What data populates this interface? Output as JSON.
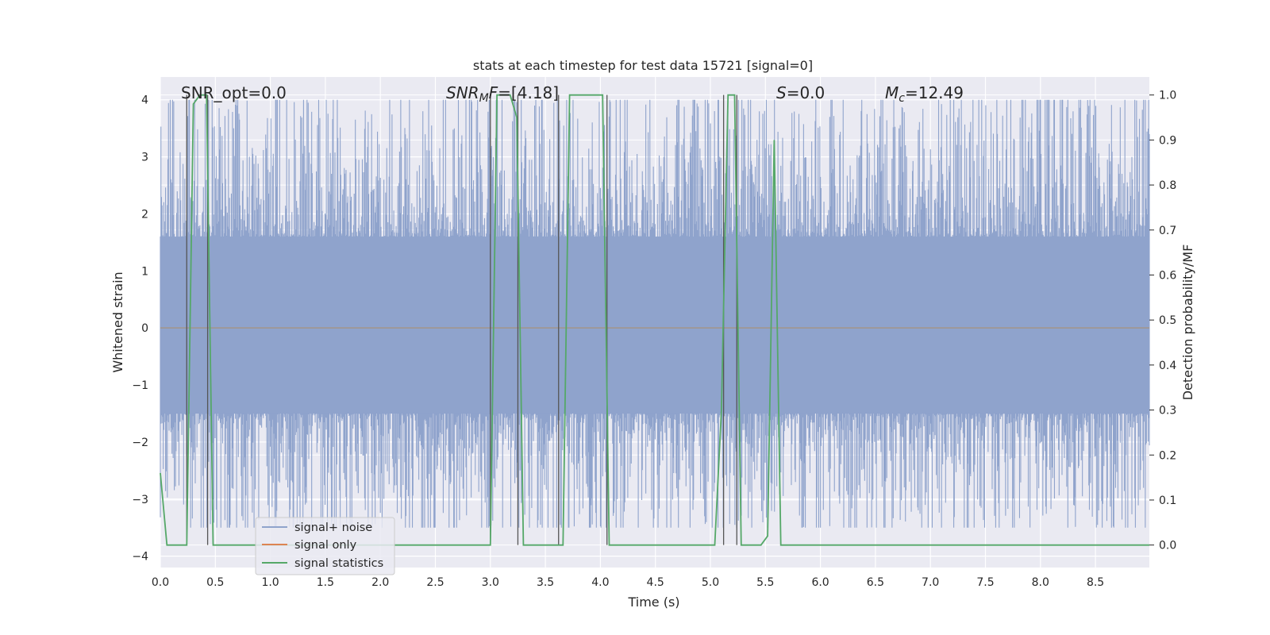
{
  "chart_data": {
    "type": "line",
    "title": "stats at each timestep for test data 15721 [signal=0]",
    "xlabel": "Time (s)",
    "ylabel": "Whitened strain",
    "y2label": "Detection probability/MF",
    "xlim": [
      0,
      8.99
    ],
    "ylim": [
      -4.2,
      4.4
    ],
    "y2lim": [
      -0.05,
      1.04
    ],
    "x_ticks": [
      "0.0",
      "0.5",
      "1.0",
      "1.5",
      "2.0",
      "2.5",
      "3.0",
      "3.5",
      "4.0",
      "4.5",
      "5.0",
      "5.5",
      "6.0",
      "6.5",
      "7.0",
      "7.5",
      "8.0",
      "8.5"
    ],
    "y_ticks": [
      "4",
      "3",
      "2",
      "1",
      "0",
      "−1",
      "−2",
      "−3",
      "−4"
    ],
    "y2_ticks": [
      "1.0",
      "0.9",
      "0.8",
      "0.7",
      "0.6",
      "0.5",
      "0.4",
      "0.3",
      "0.2",
      "0.1",
      "0.0"
    ],
    "grid": true,
    "legend_position": "lower-left",
    "colors": {
      "noise": "#8fa3cc",
      "signal": "#dd8452",
      "stats": "#55a868",
      "vline": "#555555",
      "background": "#eaeaf2",
      "grid": "#ffffff"
    },
    "annotations": {
      "snr_opt": "SNR_opt=0.0",
      "snr_mf_main": "SNR",
      "snr_mf_sub": "M",
      "snr_mf_main2": "F",
      "snr_mf_value": "=[4.18]",
      "s_symbol": "S",
      "s_value": "=0.0",
      "mc_symbol": "M",
      "mc_sub": "c",
      "mc_value": "=12.49"
    },
    "series": [
      {
        "name": "signal+ noise",
        "kind": "noise",
        "amplitude_envelope": [
          -3.5,
          4.0
        ],
        "typical_band": [
          -1.5,
          1.6
        ]
      },
      {
        "name": "signal only",
        "kind": "constant",
        "value": 0.0
      },
      {
        "name": "signal statistics",
        "kind": "line",
        "axis": "right",
        "x": [
          0.0,
          0.06,
          0.12,
          0.18,
          0.24,
          0.3,
          0.36,
          0.42,
          0.48,
          0.54,
          0.6,
          0.66,
          0.72,
          0.78,
          0.84,
          0.9,
          0.96,
          1.02,
          1.08,
          1.14,
          1.2,
          1.26,
          1.32,
          1.38,
          1.44,
          1.5,
          1.56,
          1.62,
          1.68,
          1.74,
          1.8,
          1.86,
          1.92,
          1.98,
          2.04,
          2.1,
          2.16,
          2.22,
          2.28,
          2.34,
          2.4,
          2.46,
          2.52,
          2.58,
          2.64,
          2.7,
          2.76,
          2.82,
          2.88,
          2.94,
          3.0,
          3.06,
          3.12,
          3.18,
          3.24,
          3.3,
          3.36,
          3.42,
          3.48,
          3.54,
          3.6,
          3.66,
          3.72,
          3.78,
          3.84,
          3.9,
          3.96,
          4.02,
          4.08,
          4.14,
          4.2,
          4.26,
          4.32,
          4.38,
          4.44,
          4.5,
          4.56,
          4.62,
          4.68,
          4.74,
          4.8,
          4.86,
          4.92,
          4.98,
          5.04,
          5.1,
          5.16,
          5.22,
          5.28,
          5.34,
          5.4,
          5.46,
          5.52,
          5.58,
          5.64,
          5.7,
          5.76,
          5.82,
          5.88,
          5.94,
          6.0,
          6.06,
          6.12,
          6.18,
          6.24,
          6.3,
          6.36,
          6.42,
          6.48,
          6.54,
          6.6,
          6.66,
          6.72,
          6.78,
          6.84,
          6.9,
          6.96,
          7.02,
          7.08,
          7.14,
          7.2,
          7.26,
          7.32,
          7.38,
          7.44,
          7.5,
          7.56,
          7.62,
          7.68,
          7.74,
          7.8,
          7.86,
          7.92,
          7.98,
          8.04,
          8.1,
          8.16,
          8.22,
          8.28,
          8.34,
          8.4,
          8.46,
          8.52,
          8.58,
          8.64,
          8.7,
          8.76,
          8.82,
          8.88,
          8.94,
          8.99
        ],
        "y": [
          0.16,
          0.0,
          0.0,
          0.0,
          0.0,
          0.98,
          1.0,
          1.0,
          0.0,
          0.0,
          0.0,
          0.0,
          0.0,
          0.0,
          0.0,
          0.0,
          0.0,
          0.0,
          0.0,
          0.0,
          0.0,
          0.0,
          0.0,
          0.0,
          0.0,
          0.0,
          0.0,
          0.0,
          0.0,
          0.0,
          0.0,
          0.0,
          0.0,
          0.0,
          0.0,
          0.0,
          0.0,
          0.0,
          0.0,
          0.0,
          0.0,
          0.0,
          0.0,
          0.0,
          0.0,
          0.0,
          0.0,
          0.0,
          0.0,
          0.0,
          0.0,
          1.0,
          1.0,
          1.0,
          0.95,
          0.0,
          0.0,
          0.0,
          0.0,
          0.0,
          0.0,
          0.0,
          1.0,
          1.0,
          1.0,
          1.0,
          1.0,
          1.0,
          0.0,
          0.0,
          0.0,
          0.0,
          0.0,
          0.0,
          0.0,
          0.0,
          0.0,
          0.0,
          0.0,
          0.0,
          0.0,
          0.0,
          0.0,
          0.0,
          0.0,
          0.3,
          1.0,
          1.0,
          0.0,
          0.0,
          0.0,
          0.0,
          0.02,
          0.9,
          0.0,
          0.0,
          0.0,
          0.0,
          0.0,
          0.0,
          0.0,
          0.0,
          0.0,
          0.0,
          0.0,
          0.0,
          0.0,
          0.0,
          0.0,
          0.0,
          0.0,
          0.0,
          0.0,
          0.0,
          0.0,
          0.0,
          0.0,
          0.0,
          0.0,
          0.0,
          0.0,
          0.0,
          0.0,
          0.0,
          0.0,
          0.0,
          0.0,
          0.0,
          0.0,
          0.0,
          0.0,
          0.0,
          0.0,
          0.0,
          0.0,
          0.0,
          0.0,
          0.0,
          0.0,
          0.0,
          0.0,
          0.0,
          0.0,
          0.0,
          0.0,
          0.0,
          0.0,
          0.0,
          0.0,
          0.0,
          0.0
        ]
      }
    ],
    "vlines_x": [
      0.24,
      0.43,
      3.0,
      3.25,
      3.62,
      4.06,
      5.12,
      5.24
    ]
  },
  "legend": {
    "noise_label": "signal+ noise",
    "signal_label": "signal only",
    "stats_label": "signal statistics"
  }
}
